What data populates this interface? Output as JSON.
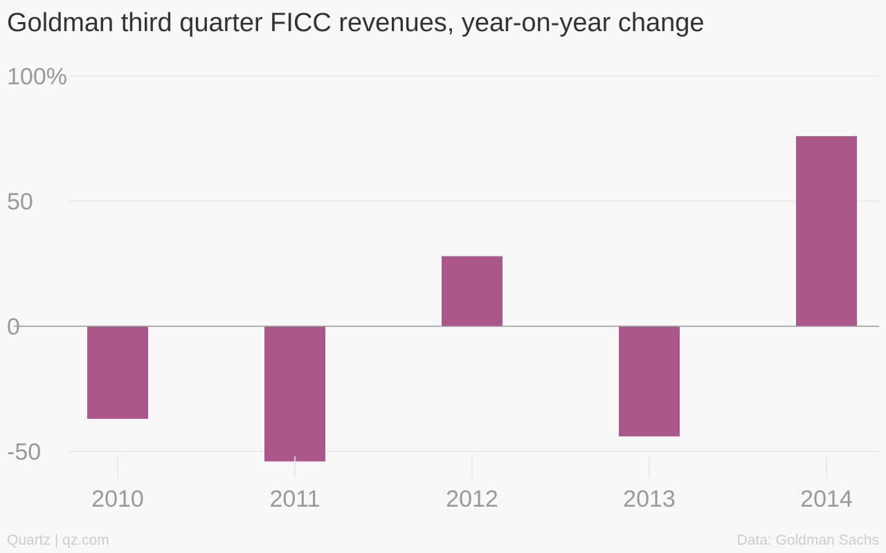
{
  "title": "Goldman third quarter FICC revenues, year-on-year change",
  "footer": {
    "left": "Quartz | qz.com",
    "right": "Data: Goldman Sachs"
  },
  "colors": {
    "bar": "#aa5889",
    "grid": "#e6e6e6",
    "zero_line": "#999999",
    "tick_text": "#999999"
  },
  "chart_data": {
    "type": "bar",
    "categories": [
      "2010",
      "2011",
      "2012",
      "2013",
      "2014"
    ],
    "values": [
      -37,
      -54,
      28,
      -44,
      76
    ],
    "title": "Goldman third quarter FICC revenues, year-on-year change",
    "xlabel": "",
    "ylabel": "",
    "ylim": [
      -60,
      100
    ],
    "yticks": [
      {
        "value": 100,
        "label": "100%"
      },
      {
        "value": 50,
        "label": "50"
      },
      {
        "value": 0,
        "label": "0"
      },
      {
        "value": -50,
        "label": "-50"
      }
    ],
    "grid": true,
    "legend": "none"
  }
}
